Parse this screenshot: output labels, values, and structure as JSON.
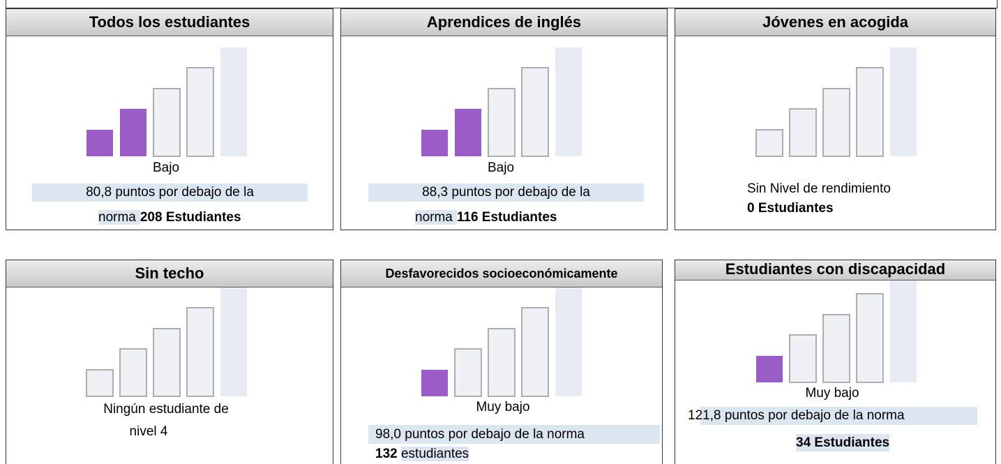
{
  "panels": [
    {
      "title": "Todos los estudiantes",
      "filled": 2,
      "level": "Bajo",
      "desc": "80,8 puntos por debajo de la",
      "prefix": "norma",
      "count": "208 Estudiantes"
    },
    {
      "title": "Aprendices de inglés",
      "filled": 2,
      "level": "Bajo",
      "desc": "88,3 puntos por debajo de la",
      "prefix": "norma",
      "count": "116 Estudiantes"
    },
    {
      "title": "Jóvenes en acogida",
      "filled": 0,
      "desc": "Sin Nivel de rendimiento",
      "count": "0 Estudiantes"
    },
    {
      "title": "Sin techo",
      "filled": 0,
      "desc": "Ningún estudiante de",
      "desc2": "nivel 4"
    },
    {
      "title": "Desfavorecidos socioeconómicamente",
      "filled": 1,
      "level": "Muy bajo",
      "desc": "98,0 puntos por debajo de la norma",
      "count": "132",
      "suffix": "estudiantes"
    },
    {
      "title": "Estudiantes con discapacidad",
      "filled": 1,
      "level": "Muy bajo",
      "desc": "121,8 puntos por debajo de la norma",
      "count": "34 Estudiantes"
    }
  ]
}
